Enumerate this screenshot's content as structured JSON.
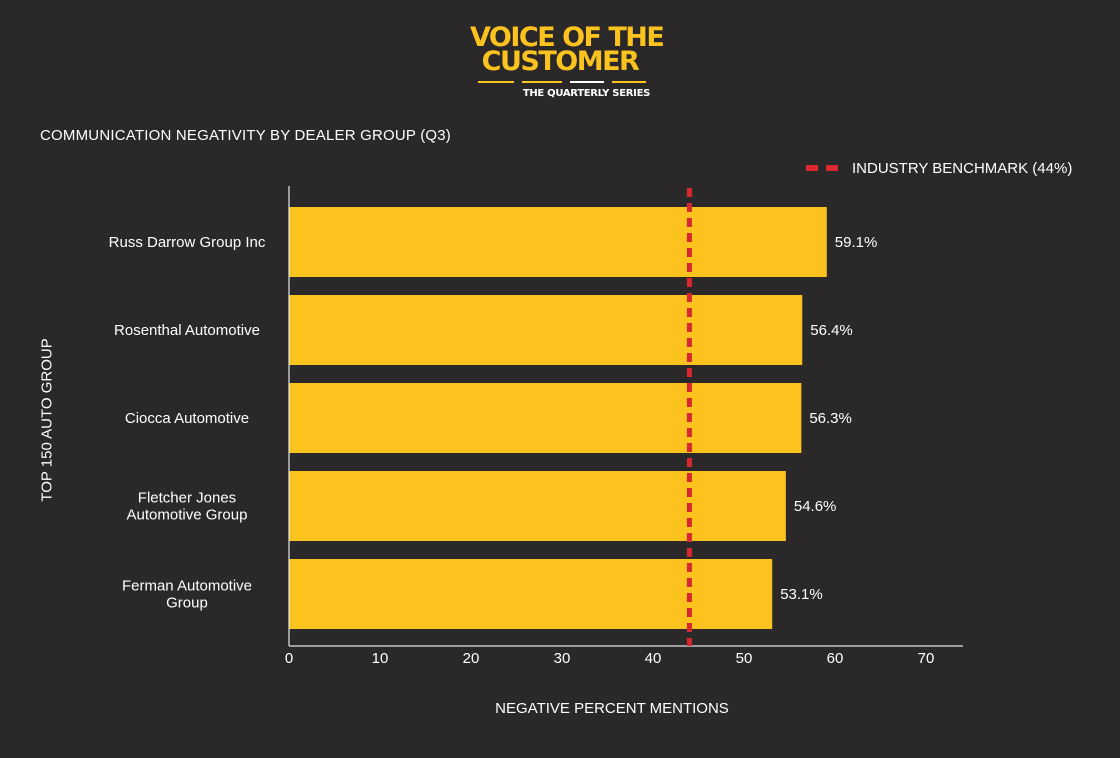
{
  "logo": {
    "line1": "VOICE OF THE",
    "line2": "CUSTOMER",
    "subtitle": "THE QUARTERLY SERIES"
  },
  "colors": {
    "background": "#2b2829",
    "bar": "#fcc31f",
    "benchmark": "#d8272e",
    "text": "#ffffff"
  },
  "chart_data": {
    "type": "bar",
    "orientation": "horizontal",
    "title": "COMMUNICATION NEGATIVITY BY DEALER GROUP (Q3)",
    "xlabel": "NEGATIVE PERCENT MENTIONS",
    "ylabel": "TOP 150 AUTO GROUP",
    "categories": [
      [
        "Russ Darrow Group Inc"
      ],
      [
        "Rosenthal Automotive"
      ],
      [
        "Ciocca Automotive"
      ],
      [
        "Fletcher Jones",
        "Automotive Group"
      ],
      [
        "Ferman Automotive",
        "Group"
      ]
    ],
    "values": [
      59.1,
      56.4,
      56.3,
      54.6,
      53.1
    ],
    "value_labels": [
      "59.1%",
      "56.4%",
      "56.3%",
      "54.6%",
      "53.1%"
    ],
    "xlim": [
      0,
      75
    ],
    "xticks": [
      0,
      10,
      20,
      30,
      40,
      50,
      60,
      70
    ],
    "grid": false,
    "benchmark": {
      "label": "INDUSTRY BENCHMARK (44%)",
      "value": 44
    },
    "legend_position": "top-right"
  }
}
